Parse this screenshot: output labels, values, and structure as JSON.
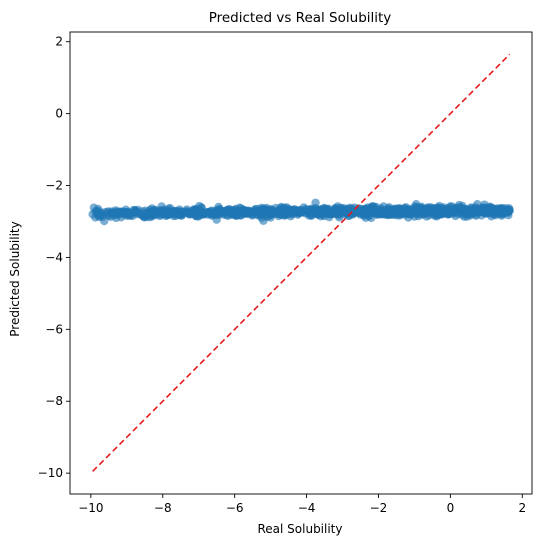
{
  "chart_data": {
    "type": "scatter",
    "title": "Predicted vs Real Solubility",
    "xlabel": "Real Solubility",
    "ylabel": "Predicted Solubility",
    "xlim": [
      -10.58,
      2.27
    ],
    "ylim": [
      -10.58,
      2.27
    ],
    "xticks": [
      -10,
      -8,
      -6,
      -4,
      -2,
      0,
      2
    ],
    "yticks": [
      -10,
      -8,
      -6,
      -4,
      -2,
      0,
      2
    ],
    "xtick_labels": [
      "−10",
      "−8",
      "−6",
      "−4",
      "−2",
      "0",
      "2"
    ],
    "ytick_labels": [
      "−10",
      "−8",
      "−6",
      "−4",
      "−2",
      "0",
      "2"
    ],
    "grid": false,
    "point_color": "#1f77b4",
    "line_color": "#e41a1c",
    "series": [
      {
        "type": "scatter",
        "x_range": [
          -9.95,
          1.65
        ],
        "y_center": -2.78,
        "y_spread": 0.06,
        "point_count": 1100,
        "outliers": [
          {
            "x": -9.95,
            "y": -2.8
          },
          {
            "x": -3.75,
            "y": -2.48
          },
          {
            "x": -0.95,
            "y": -2.52
          },
          {
            "x": 0.75,
            "y": -2.52
          },
          {
            "x": 0.0,
            "y": -2.58
          },
          {
            "x": 1.65,
            "y": -2.7
          },
          {
            "x": -5.2,
            "y": -2.98
          },
          {
            "x": -6.5,
            "y": -2.95
          },
          {
            "x": -9.3,
            "y": -2.9
          },
          {
            "x": -9.1,
            "y": -2.75
          },
          {
            "x": -2.2,
            "y": -2.6
          }
        ]
      },
      {
        "type": "line",
        "style": "dashed",
        "x": [
          -9.95,
          1.65
        ],
        "y": [
          -9.95,
          1.65
        ]
      }
    ]
  }
}
